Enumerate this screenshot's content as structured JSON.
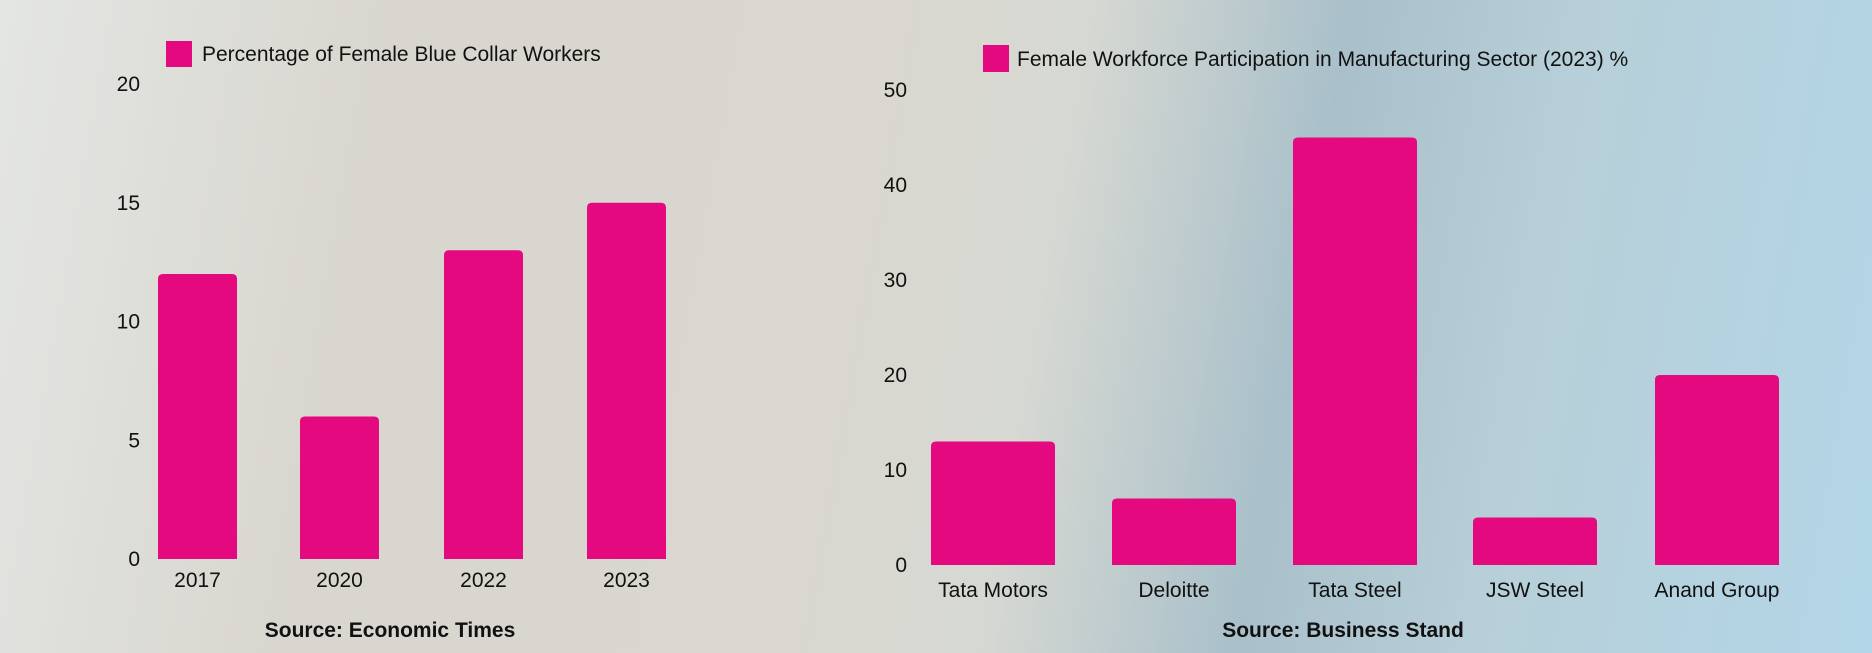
{
  "colors": {
    "bar": "#e5097f"
  },
  "chart_data": [
    {
      "type": "bar",
      "legend": "Percentage of Female Blue Collar Workers",
      "categories": [
        "2017",
        "2020",
        "2022",
        "2023"
      ],
      "values": [
        12,
        6,
        13,
        15
      ],
      "ylim": [
        0,
        20
      ],
      "yticks": [
        0,
        5,
        10,
        15,
        20
      ],
      "grid": false,
      "legend_placement": "top-left",
      "source": "Source: Economic Times"
    },
    {
      "type": "bar",
      "legend": "Female Workforce Participation in Manufacturing Sector (2023) %",
      "categories": [
        "Tata Motors",
        "Deloitte",
        "Tata Steel",
        "JSW Steel",
        "Anand Group"
      ],
      "values": [
        13,
        7,
        45,
        5,
        20
      ],
      "ylim": [
        0,
        50
      ],
      "yticks": [
        0,
        10,
        20,
        30,
        40,
        50
      ],
      "grid": false,
      "legend_placement": "top-left",
      "source": "Source: Business Stand"
    }
  ]
}
